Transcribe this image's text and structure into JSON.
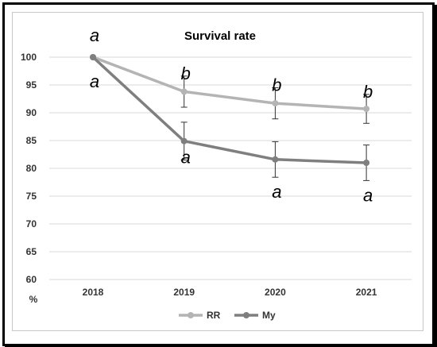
{
  "chart_data": {
    "type": "line",
    "title": "Survival rate",
    "ylabel": "%",
    "xlabel": "",
    "categories": [
      "2018",
      "2019",
      "2020",
      "2021"
    ],
    "ylim": [
      60,
      100
    ],
    "yticks": [
      60,
      65,
      70,
      75,
      80,
      85,
      90,
      95,
      100
    ],
    "grid": true,
    "legend_position": "bottom",
    "series": [
      {
        "name": "RR",
        "color": "#b4b4b4",
        "values": [
          100,
          93.8,
          91.7,
          90.7
        ],
        "error": [
          0,
          2.8,
          2.8,
          2.6
        ],
        "letters": [
          "a",
          "b",
          "b",
          "b"
        ],
        "letter_side": "above"
      },
      {
        "name": "My",
        "color": "#7f7f7f",
        "values": [
          100,
          84.9,
          81.6,
          81.0
        ],
        "error": [
          0,
          3.4,
          3.2,
          3.2
        ],
        "letters": [
          "a",
          "a",
          "a",
          "a"
        ],
        "letter_side": "below"
      }
    ]
  }
}
